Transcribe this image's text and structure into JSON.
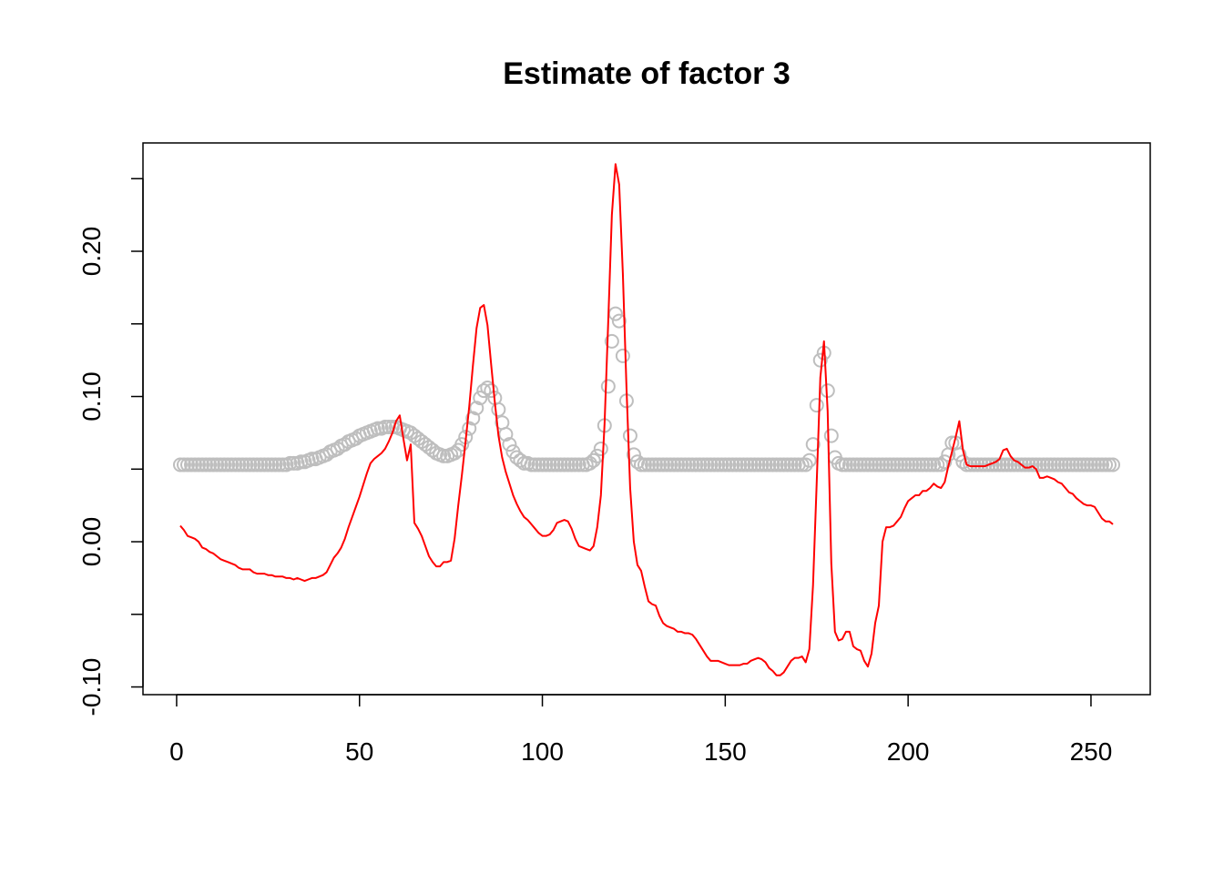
{
  "chart_data": {
    "type": "line",
    "title": "Estimate of factor 3",
    "x": [
      1,
      2,
      3,
      4,
      5,
      6,
      7,
      8,
      9,
      10,
      11,
      12,
      13,
      14,
      15,
      16,
      17,
      18,
      19,
      20,
      21,
      22,
      23,
      24,
      25,
      26,
      27,
      28,
      29,
      30,
      31,
      32,
      33,
      34,
      35,
      36,
      37,
      38,
      39,
      40,
      41,
      42,
      43,
      44,
      45,
      46,
      47,
      48,
      49,
      50,
      51,
      52,
      53,
      54,
      55,
      56,
      57,
      58,
      59,
      60,
      61,
      62,
      63,
      64,
      65,
      66,
      67,
      68,
      69,
      70,
      71,
      72,
      73,
      74,
      75,
      76,
      77,
      78,
      79,
      80,
      81,
      82,
      83,
      84,
      85,
      86,
      87,
      88,
      89,
      90,
      91,
      92,
      93,
      94,
      95,
      96,
      97,
      98,
      99,
      100,
      101,
      102,
      103,
      104,
      105,
      106,
      107,
      108,
      109,
      110,
      111,
      112,
      113,
      114,
      115,
      116,
      117,
      118,
      119,
      120,
      121,
      122,
      123,
      124,
      125,
      126,
      127,
      128,
      129,
      130,
      131,
      132,
      133,
      134,
      135,
      136,
      137,
      138,
      139,
      140,
      141,
      142,
      143,
      144,
      145,
      146,
      147,
      148,
      149,
      150,
      151,
      152,
      153,
      154,
      155,
      156,
      157,
      158,
      159,
      160,
      161,
      162,
      163,
      164,
      165,
      166,
      167,
      168,
      169,
      170,
      171,
      172,
      173,
      174,
      175,
      176,
      177,
      178,
      179,
      180,
      181,
      182,
      183,
      184,
      185,
      186,
      187,
      188,
      189,
      190,
      191,
      192,
      193,
      194,
      195,
      196,
      197,
      198,
      199,
      200,
      201,
      202,
      203,
      204,
      205,
      206,
      207,
      208,
      209,
      210,
      211,
      212,
      213,
      214,
      215,
      216,
      217,
      218,
      219,
      220,
      221,
      222,
      223,
      224,
      225,
      226,
      227,
      228,
      229,
      230,
      231,
      232,
      233,
      234,
      235,
      236,
      237,
      238,
      239,
      240,
      241,
      242,
      243,
      244,
      245,
      246,
      247,
      248,
      249,
      250,
      251,
      252,
      253,
      254,
      255,
      256
    ],
    "series": [
      {
        "mark": "circle",
        "color": "#bebebe",
        "values": [
          0.053,
          0.053,
          0.053,
          0.053,
          0.053,
          0.053,
          0.053,
          0.053,
          0.053,
          0.053,
          0.053,
          0.053,
          0.053,
          0.053,
          0.053,
          0.053,
          0.053,
          0.053,
          0.053,
          0.053,
          0.053,
          0.053,
          0.053,
          0.053,
          0.053,
          0.053,
          0.053,
          0.053,
          0.053,
          0.053,
          0.054,
          0.054,
          0.054,
          0.055,
          0.055,
          0.056,
          0.057,
          0.057,
          0.058,
          0.059,
          0.06,
          0.062,
          0.063,
          0.064,
          0.066,
          0.067,
          0.069,
          0.07,
          0.071,
          0.073,
          0.074,
          0.075,
          0.076,
          0.077,
          0.078,
          0.078,
          0.079,
          0.079,
          0.079,
          0.079,
          0.078,
          0.077,
          0.076,
          0.075,
          0.073,
          0.071,
          0.069,
          0.067,
          0.065,
          0.063,
          0.061,
          0.06,
          0.059,
          0.059,
          0.06,
          0.061,
          0.063,
          0.067,
          0.072,
          0.078,
          0.085,
          0.092,
          0.099,
          0.104,
          0.106,
          0.104,
          0.099,
          0.091,
          0.082,
          0.074,
          0.067,
          0.062,
          0.058,
          0.056,
          0.054,
          0.054,
          0.053,
          0.053,
          0.053,
          0.053,
          0.053,
          0.053,
          0.053,
          0.053,
          0.053,
          0.053,
          0.053,
          0.053,
          0.053,
          0.053,
          0.053,
          0.053,
          0.054,
          0.056,
          0.059,
          0.064,
          0.08,
          0.107,
          0.138,
          0.157,
          0.152,
          0.128,
          0.097,
          0.073,
          0.06,
          0.055,
          0.053,
          0.053,
          0.053,
          0.053,
          0.053,
          0.053,
          0.053,
          0.053,
          0.053,
          0.053,
          0.053,
          0.053,
          0.053,
          0.053,
          0.053,
          0.053,
          0.053,
          0.053,
          0.053,
          0.053,
          0.053,
          0.053,
          0.053,
          0.053,
          0.053,
          0.053,
          0.053,
          0.053,
          0.053,
          0.053,
          0.053,
          0.053,
          0.053,
          0.053,
          0.053,
          0.053,
          0.053,
          0.053,
          0.053,
          0.053,
          0.053,
          0.053,
          0.053,
          0.053,
          0.053,
          0.053,
          0.056,
          0.067,
          0.094,
          0.125,
          0.13,
          0.104,
          0.073,
          0.058,
          0.054,
          0.053,
          0.053,
          0.053,
          0.053,
          0.053,
          0.053,
          0.053,
          0.053,
          0.053,
          0.053,
          0.053,
          0.053,
          0.053,
          0.053,
          0.053,
          0.053,
          0.053,
          0.053,
          0.053,
          0.053,
          0.053,
          0.053,
          0.053,
          0.053,
          0.053,
          0.053,
          0.053,
          0.053,
          0.055,
          0.06,
          0.068,
          0.068,
          0.06,
          0.055,
          0.053,
          0.053,
          0.053,
          0.053,
          0.053,
          0.053,
          0.053,
          0.053,
          0.053,
          0.053,
          0.053,
          0.053,
          0.053,
          0.053,
          0.053,
          0.053,
          0.053,
          0.053,
          0.053,
          0.053,
          0.053,
          0.053,
          0.053,
          0.053,
          0.053,
          0.053,
          0.053,
          0.053,
          0.053,
          0.053,
          0.053,
          0.053,
          0.053,
          0.053,
          0.053,
          0.053,
          0.053,
          0.053,
          0.053,
          0.053,
          0.053
        ]
      },
      {
        "mark": "line",
        "color": "#ff0000",
        "values": [
          0.011,
          0.008,
          0.004,
          0.003,
          0.002,
          0.0,
          -0.004,
          -0.005,
          -0.007,
          -0.008,
          -0.01,
          -0.012,
          -0.013,
          -0.014,
          -0.015,
          -0.016,
          -0.018,
          -0.019,
          -0.019,
          -0.019,
          -0.021,
          -0.022,
          -0.022,
          -0.022,
          -0.023,
          -0.023,
          -0.024,
          -0.024,
          -0.024,
          -0.025,
          -0.025,
          -0.026,
          -0.025,
          -0.026,
          -0.027,
          -0.026,
          -0.025,
          -0.025,
          -0.024,
          -0.023,
          -0.021,
          -0.016,
          -0.011,
          -0.008,
          -0.004,
          0.002,
          0.01,
          0.017,
          0.024,
          0.031,
          0.039,
          0.047,
          0.054,
          0.057,
          0.059,
          0.061,
          0.064,
          0.069,
          0.075,
          0.083,
          0.087,
          0.071,
          0.056,
          0.067,
          0.013,
          0.009,
          0.004,
          -0.003,
          -0.01,
          -0.014,
          -0.017,
          -0.017,
          -0.014,
          -0.014,
          -0.013,
          0.002,
          0.025,
          0.046,
          0.069,
          0.093,
          0.121,
          0.147,
          0.161,
          0.163,
          0.149,
          0.122,
          0.096,
          0.073,
          0.058,
          0.048,
          0.04,
          0.032,
          0.026,
          0.021,
          0.017,
          0.015,
          0.012,
          0.009,
          0.006,
          0.004,
          0.004,
          0.005,
          0.008,
          0.013,
          0.014,
          0.015,
          0.014,
          0.009,
          0.002,
          -0.003,
          -0.004,
          -0.005,
          -0.006,
          -0.003,
          0.01,
          0.032,
          0.081,
          0.151,
          0.225,
          0.26,
          0.246,
          0.185,
          0.106,
          0.037,
          0.0,
          -0.016,
          -0.02,
          -0.031,
          -0.041,
          -0.043,
          -0.044,
          -0.051,
          -0.056,
          -0.058,
          -0.059,
          -0.06,
          -0.062,
          -0.062,
          -0.063,
          -0.063,
          -0.064,
          -0.067,
          -0.071,
          -0.075,
          -0.079,
          -0.082,
          -0.082,
          -0.082,
          -0.083,
          -0.084,
          -0.085,
          -0.085,
          -0.085,
          -0.085,
          -0.084,
          -0.084,
          -0.082,
          -0.081,
          -0.08,
          -0.081,
          -0.083,
          -0.087,
          -0.089,
          -0.092,
          -0.092,
          -0.09,
          -0.086,
          -0.082,
          -0.08,
          -0.08,
          -0.079,
          -0.083,
          -0.074,
          -0.03,
          0.04,
          0.113,
          0.138,
          0.09,
          -0.015,
          -0.062,
          -0.068,
          -0.067,
          -0.062,
          -0.062,
          -0.072,
          -0.074,
          -0.075,
          -0.082,
          -0.086,
          -0.077,
          -0.056,
          -0.044,
          0.0,
          0.01,
          0.01,
          0.011,
          0.014,
          0.017,
          0.023,
          0.028,
          0.03,
          0.032,
          0.032,
          0.035,
          0.035,
          0.037,
          0.04,
          0.038,
          0.037,
          0.041,
          0.052,
          0.062,
          0.072,
          0.083,
          0.063,
          0.053,
          0.052,
          0.052,
          0.052,
          0.052,
          0.052,
          0.053,
          0.054,
          0.055,
          0.057,
          0.063,
          0.064,
          0.059,
          0.056,
          0.055,
          0.053,
          0.051,
          0.051,
          0.052,
          0.05,
          0.044,
          0.044,
          0.045,
          0.044,
          0.043,
          0.041,
          0.04,
          0.037,
          0.034,
          0.033,
          0.03,
          0.028,
          0.026,
          0.025,
          0.025,
          0.024,
          0.02,
          0.016,
          0.014,
          0.014,
          0.012
        ]
      }
    ],
    "xlim": [
      -9.2,
      266.2
    ],
    "xticks": [
      0,
      50,
      100,
      150,
      200,
      250
    ],
    "ylim": [
      -0.1053,
      0.2746
    ],
    "yticks": [
      {
        "value": -0.1,
        "label": "-0.10"
      },
      {
        "value": -0.05,
        "label": null
      },
      {
        "value": 0,
        "label": "0.00"
      },
      {
        "value": 0.05,
        "label": null
      },
      {
        "value": 0.1,
        "label": "0.10"
      },
      {
        "value": 0.15,
        "label": null
      },
      {
        "value": 0.2,
        "label": "0.20"
      },
      {
        "value": 0.25,
        "label": null
      }
    ],
    "grid": false
  }
}
